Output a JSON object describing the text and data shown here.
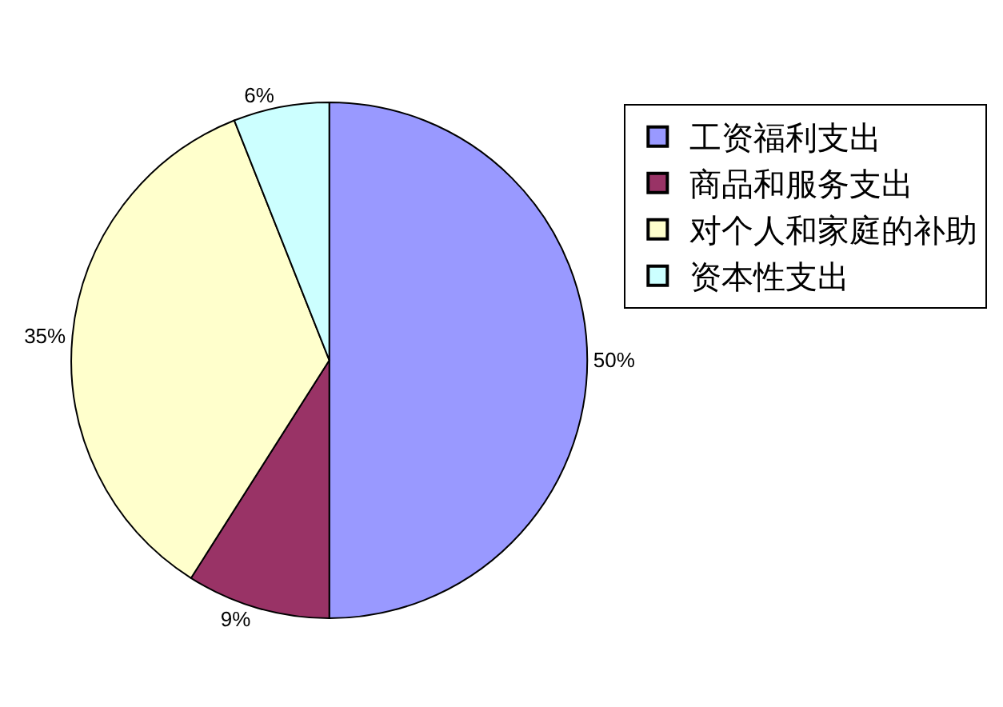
{
  "chart_data": {
    "type": "pie",
    "categories": [
      "工资福利支出",
      "商品和服务支出",
      "对个人和家庭的补助",
      "资本性支出"
    ],
    "values": [
      50,
      9,
      35,
      6
    ],
    "value_labels": [
      "50%",
      "9%",
      "35%",
      "6%"
    ],
    "colors": [
      "#9999ff",
      "#993366",
      "#ffffcc",
      "#ccffff"
    ],
    "legend": "right"
  }
}
